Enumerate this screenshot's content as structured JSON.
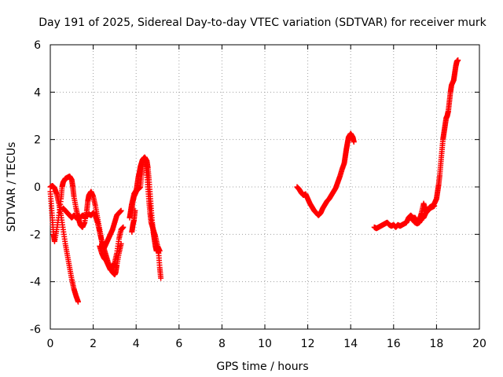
{
  "chart_data": {
    "type": "scatter",
    "title": "Day 191 of 2025, Sidereal Day-to-day VTEC variation (SDTVAR) for receiver murk",
    "xlabel": "GPS time / hours",
    "ylabel": "SDTVAR / TECUs",
    "xlim": [
      0,
      20
    ],
    "ylim": [
      -6,
      6
    ],
    "xticks": [
      0,
      2,
      4,
      6,
      8,
      10,
      12,
      14,
      16,
      18,
      20
    ],
    "yticks": [
      -6,
      -4,
      -2,
      0,
      2,
      4,
      6
    ],
    "grid": true,
    "marker": "+",
    "color": "#ff0000",
    "series": [
      {
        "name": "murk",
        "segments": [
          [
            [
              0.0,
              0.0
            ],
            [
              0.1,
              0.05
            ],
            [
              0.2,
              -0.05
            ],
            [
              0.3,
              -0.3
            ],
            [
              0.4,
              -0.7
            ],
            [
              0.5,
              -1.2
            ],
            [
              0.6,
              -1.8
            ],
            [
              0.7,
              -2.4
            ],
            [
              0.8,
              -2.9
            ],
            [
              0.9,
              -3.4
            ],
            [
              1.0,
              -3.9
            ],
            [
              1.1,
              -4.3
            ],
            [
              1.2,
              -4.6
            ],
            [
              1.3,
              -4.85
            ]
          ],
          [
            [
              0.0,
              -0.2
            ],
            [
              0.05,
              -0.8
            ],
            [
              0.1,
              -1.4
            ],
            [
              0.15,
              -2.0
            ],
            [
              0.2,
              -2.3
            ],
            [
              0.3,
              -1.8
            ],
            [
              0.4,
              -1.2
            ],
            [
              0.5,
              -0.5
            ],
            [
              0.55,
              0.0
            ],
            [
              0.6,
              0.2
            ],
            [
              0.7,
              0.35
            ],
            [
              0.8,
              0.4
            ],
            [
              0.9,
              0.45
            ],
            [
              1.0,
              0.3
            ],
            [
              1.05,
              0.0
            ],
            [
              1.1,
              -0.4
            ],
            [
              1.2,
              -0.9
            ],
            [
              1.3,
              -1.3
            ],
            [
              1.4,
              -1.6
            ],
            [
              1.5,
              -1.7
            ],
            [
              1.6,
              -1.5
            ],
            [
              1.7,
              -1.0
            ],
            [
              1.75,
              -0.6
            ],
            [
              1.8,
              -0.35
            ],
            [
              1.9,
              -0.2
            ],
            [
              2.0,
              -0.4
            ],
            [
              2.1,
              -0.8
            ],
            [
              2.2,
              -1.3
            ],
            [
              2.3,
              -1.8
            ],
            [
              2.4,
              -2.3
            ],
            [
              2.5,
              -2.6
            ],
            [
              2.6,
              -2.4
            ],
            [
              2.7,
              -2.2
            ],
            [
              2.8,
              -2.0
            ],
            [
              2.9,
              -1.8
            ],
            [
              3.0,
              -1.5
            ],
            [
              3.1,
              -1.2
            ],
            [
              3.2,
              -1.1
            ],
            [
              3.3,
              -1.0
            ]
          ],
          [
            [
              0.6,
              -0.9
            ],
            [
              0.7,
              -1.0
            ],
            [
              0.8,
              -1.1
            ],
            [
              0.9,
              -1.2
            ],
            [
              1.0,
              -1.3
            ],
            [
              1.1,
              -1.2
            ],
            [
              1.2,
              -1.3
            ],
            [
              1.3,
              -1.2
            ],
            [
              1.4,
              -1.3
            ],
            [
              1.5,
              -1.2
            ],
            [
              1.6,
              -1.25
            ],
            [
              1.7,
              -1.2
            ],
            [
              1.8,
              -1.15
            ],
            [
              1.9,
              -1.2
            ],
            [
              2.0,
              -1.1
            ],
            [
              2.1,
              -1.2
            ],
            [
              2.2,
              -1.5
            ],
            [
              2.3,
              -1.9
            ],
            [
              2.4,
              -2.3
            ],
            [
              2.5,
              -2.6
            ],
            [
              2.6,
              -2.9
            ],
            [
              2.7,
              -3.2
            ],
            [
              2.8,
              -3.45
            ],
            [
              2.9,
              -3.6
            ],
            [
              3.0,
              -3.7
            ],
            [
              3.05,
              -3.6
            ],
            [
              3.1,
              -3.3
            ],
            [
              3.2,
              -2.8
            ],
            [
              3.3,
              -2.4
            ]
          ],
          [
            [
              2.3,
              -2.5
            ],
            [
              2.4,
              -2.8
            ],
            [
              2.5,
              -3.0
            ],
            [
              2.6,
              -3.1
            ],
            [
              2.7,
              -3.3
            ],
            [
              2.8,
              -3.5
            ],
            [
              2.9,
              -3.4
            ],
            [
              3.0,
              -3.2
            ],
            [
              3.1,
              -2.8
            ],
            [
              3.2,
              -2.2
            ],
            [
              3.3,
              -1.8
            ],
            [
              3.4,
              -1.7
            ]
          ],
          [
            [
              3.8,
              -1.0
            ],
            [
              3.85,
              -0.6
            ],
            [
              3.9,
              -0.4
            ],
            [
              3.95,
              -0.3
            ],
            [
              4.0,
              -0.2
            ],
            [
              4.05,
              0.1
            ],
            [
              4.1,
              0.4
            ],
            [
              4.15,
              0.6
            ],
            [
              4.2,
              0.85
            ],
            [
              4.25,
              1.0
            ],
            [
              4.3,
              1.15
            ],
            [
              4.4,
              1.25
            ],
            [
              4.5,
              1.1
            ],
            [
              4.55,
              0.8
            ],
            [
              4.6,
              0.3
            ],
            [
              4.65,
              -0.3
            ],
            [
              4.7,
              -0.9
            ],
            [
              4.75,
              -1.5
            ],
            [
              4.8,
              -1.9
            ],
            [
              4.85,
              -2.2
            ],
            [
              4.9,
              -2.5
            ],
            [
              4.95,
              -2.7
            ],
            [
              5.0,
              -2.6
            ],
            [
              5.05,
              -2.8
            ],
            [
              5.1,
              -3.4
            ],
            [
              5.15,
              -3.85
            ]
          ],
          [
            [
              3.7,
              -1.3
            ],
            [
              3.75,
              -1.0
            ],
            [
              3.8,
              -0.7
            ],
            [
              3.9,
              -0.3
            ],
            [
              4.0,
              -0.15
            ],
            [
              4.1,
              -0.1
            ],
            [
              4.2,
              0.0
            ],
            [
              4.25,
              0.5
            ],
            [
              4.3,
              0.9
            ],
            [
              4.35,
              1.2
            ],
            [
              4.4,
              1.25
            ],
            [
              4.45,
              1.1
            ],
            [
              4.5,
              0.6
            ],
            [
              4.55,
              0.0
            ],
            [
              4.6,
              -0.6
            ],
            [
              4.65,
              -1.1
            ],
            [
              4.7,
              -1.5
            ],
            [
              4.8,
              -1.8
            ],
            [
              4.9,
              -2.1
            ],
            [
              5.0,
              -2.5
            ],
            [
              5.1,
              -2.7
            ]
          ],
          [
            [
              3.8,
              -1.9
            ],
            [
              3.85,
              -1.6
            ],
            [
              3.9,
              -1.4
            ],
            [
              3.95,
              -1.0
            ]
          ],
          [
            [
              11.5,
              0.0
            ],
            [
              11.6,
              -0.1
            ],
            [
              11.7,
              -0.25
            ],
            [
              11.8,
              -0.35
            ],
            [
              11.9,
              -0.3
            ],
            [
              12.0,
              -0.5
            ],
            [
              12.1,
              -0.7
            ],
            [
              12.2,
              -0.85
            ],
            [
              12.3,
              -1.0
            ],
            [
              12.4,
              -1.1
            ],
            [
              12.5,
              -1.2
            ],
            [
              12.6,
              -1.1
            ],
            [
              12.7,
              -0.9
            ],
            [
              12.8,
              -0.75
            ],
            [
              12.9,
              -0.6
            ],
            [
              13.0,
              -0.5
            ],
            [
              13.1,
              -0.35
            ],
            [
              13.2,
              -0.2
            ],
            [
              13.3,
              -0.05
            ],
            [
              13.4,
              0.2
            ],
            [
              13.5,
              0.45
            ],
            [
              13.6,
              0.75
            ],
            [
              13.7,
              1.0
            ],
            [
              13.75,
              1.3
            ],
            [
              13.8,
              1.6
            ],
            [
              13.85,
              1.85
            ],
            [
              13.9,
              2.1
            ],
            [
              14.0,
              2.25
            ],
            [
              14.1,
              2.1
            ],
            [
              14.15,
              1.9
            ]
          ],
          [
            [
              15.1,
              -1.7
            ],
            [
              15.2,
              -1.75
            ],
            [
              15.3,
              -1.7
            ],
            [
              15.4,
              -1.65
            ],
            [
              15.5,
              -1.6
            ],
            [
              15.6,
              -1.55
            ],
            [
              15.7,
              -1.5
            ],
            [
              15.8,
              -1.6
            ],
            [
              15.9,
              -1.65
            ],
            [
              16.0,
              -1.6
            ],
            [
              16.1,
              -1.7
            ],
            [
              16.2,
              -1.6
            ],
            [
              16.3,
              -1.65
            ],
            [
              16.4,
              -1.6
            ],
            [
              16.5,
              -1.55
            ],
            [
              16.6,
              -1.5
            ],
            [
              16.7,
              -1.3
            ],
            [
              16.8,
              -1.2
            ],
            [
              16.9,
              -1.3
            ],
            [
              17.0,
              -1.3
            ],
            [
              17.1,
              -1.45
            ],
            [
              17.2,
              -1.4
            ],
            [
              17.3,
              -1.1
            ],
            [
              17.4,
              -0.7
            ],
            [
              17.5,
              -1.0
            ],
            [
              17.6,
              -0.95
            ],
            [
              17.7,
              -0.85
            ],
            [
              17.8,
              -0.8
            ],
            [
              17.9,
              -0.7
            ],
            [
              18.0,
              -0.5
            ],
            [
              18.05,
              -0.2
            ],
            [
              18.1,
              0.1
            ],
            [
              18.15,
              0.5
            ],
            [
              18.2,
              1.0
            ],
            [
              18.25,
              1.5
            ],
            [
              18.3,
              2.0
            ],
            [
              18.35,
              2.3
            ],
            [
              18.4,
              2.6
            ],
            [
              18.45,
              2.9
            ],
            [
              18.5,
              3.0
            ],
            [
              18.55,
              3.2
            ],
            [
              18.6,
              3.6
            ],
            [
              18.65,
              4.0
            ],
            [
              18.7,
              4.3
            ],
            [
              18.8,
              4.5
            ],
            [
              18.85,
              4.8
            ],
            [
              18.9,
              5.1
            ],
            [
              18.95,
              5.3
            ],
            [
              19.0,
              5.35
            ]
          ],
          [
            [
              16.7,
              -1.35
            ],
            [
              16.8,
              -1.25
            ],
            [
              16.9,
              -1.4
            ],
            [
              17.0,
              -1.5
            ],
            [
              17.1,
              -1.55
            ],
            [
              17.2,
              -1.5
            ],
            [
              17.3,
              -1.35
            ],
            [
              17.4,
              -1.3
            ],
            [
              17.5,
              -1.1
            ],
            [
              17.6,
              -1.0
            ],
            [
              17.7,
              -0.9
            ],
            [
              17.8,
              -0.85
            ],
            [
              17.9,
              -0.8
            ]
          ]
        ]
      }
    ]
  }
}
